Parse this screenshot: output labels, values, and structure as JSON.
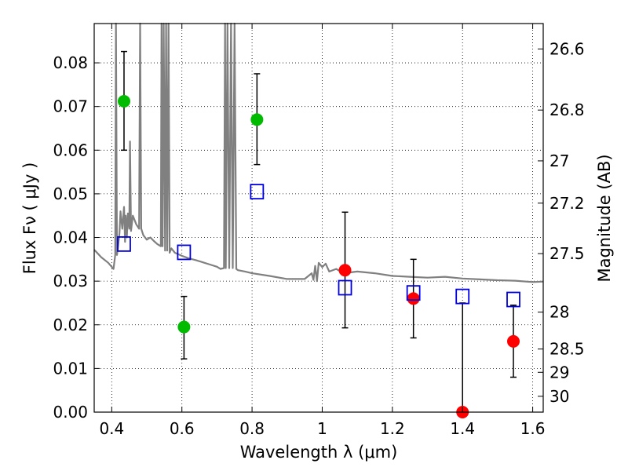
{
  "chart_data": {
    "type": "scatter",
    "xlabel": "Wavelength  λ (μm)",
    "ylabel": "Flux  Fν  ( μJy )",
    "y2label": "Magnitude (AB)",
    "xlim": [
      0.35,
      1.63
    ],
    "ylim": [
      0,
      0.089
    ],
    "grid": true,
    "x_ticks": [
      {
        "value": 0.4,
        "label": "0.4"
      },
      {
        "value": 0.6,
        "label": "0.6"
      },
      {
        "value": 0.8,
        "label": "0.8"
      },
      {
        "value": 1.0,
        "label": "1"
      },
      {
        "value": 1.2,
        "label": "1.2"
      },
      {
        "value": 1.4,
        "label": "1.4"
      },
      {
        "value": 1.6,
        "label": "1.6"
      }
    ],
    "y_ticks": [
      {
        "value": 0.0,
        "label": "0.00"
      },
      {
        "value": 0.01,
        "label": "0.01"
      },
      {
        "value": 0.02,
        "label": "0.02"
      },
      {
        "value": 0.03,
        "label": "0.03"
      },
      {
        "value": 0.04,
        "label": "0.04"
      },
      {
        "value": 0.05,
        "label": "0.05"
      },
      {
        "value": 0.06,
        "label": "0.06"
      },
      {
        "value": 0.07,
        "label": "0.07"
      },
      {
        "value": 0.08,
        "label": "0.08"
      }
    ],
    "y2_ticks": [
      {
        "value": 26.6,
        "label": "26.6"
      },
      {
        "value": 26.8,
        "label": "26.8"
      },
      {
        "value": 27.0,
        "label": "27"
      },
      {
        "value": 27.2,
        "label": "27.2"
      },
      {
        "value": 27.5,
        "label": "27.5"
      },
      {
        "value": 28.0,
        "label": "28"
      },
      {
        "value": 28.5,
        "label": "28.5"
      },
      {
        "value": 29.0,
        "label": "29"
      },
      {
        "value": 30.0,
        "label": "30"
      }
    ],
    "series": [
      {
        "kind": "points",
        "marker": "circle",
        "color": "#00bb00",
        "points": [
          {
            "x": 0.435,
            "y": 0.0712,
            "ylo": 0.06,
            "yhi": 0.0826
          },
          {
            "x": 0.606,
            "y": 0.0195,
            "ylo": 0.0122,
            "yhi": 0.0265
          },
          {
            "x": 0.814,
            "y": 0.067,
            "ylo": 0.0567,
            "yhi": 0.0775
          }
        ]
      },
      {
        "kind": "points",
        "marker": "circle",
        "color": "#ff0000",
        "points": [
          {
            "x": 1.065,
            "y": 0.0325,
            "ylo": 0.0193,
            "yhi": 0.0458
          },
          {
            "x": 1.26,
            "y": 0.026,
            "ylo": 0.017,
            "yhi": 0.035
          },
          {
            "x": 1.4,
            "y": 0.0,
            "ylo": 0.0,
            "yhi": 0.025
          },
          {
            "x": 1.545,
            "y": 0.0162,
            "ylo": 0.008,
            "yhi": 0.0245
          }
        ]
      },
      {
        "kind": "points",
        "marker": "open-square",
        "color": "#0000dd",
        "points": [
          {
            "x": 0.435,
            "y": 0.0385
          },
          {
            "x": 0.606,
            "y": 0.0366
          },
          {
            "x": 0.814,
            "y": 0.0505
          },
          {
            "x": 1.065,
            "y": 0.0285
          },
          {
            "x": 1.26,
            "y": 0.0273
          },
          {
            "x": 1.4,
            "y": 0.0265
          },
          {
            "x": 1.545,
            "y": 0.0258
          }
        ]
      },
      {
        "kind": "line",
        "color": "#808080",
        "x": [
          0.35,
          0.37,
          0.39,
          0.405,
          0.41,
          0.412,
          0.415,
          0.418,
          0.422,
          0.425,
          0.43,
          0.435,
          0.438,
          0.44,
          0.443,
          0.446,
          0.45,
          0.452,
          0.455,
          0.46,
          0.47,
          0.478,
          0.481,
          0.484,
          0.49,
          0.5,
          0.51,
          0.52,
          0.53,
          0.54,
          0.542,
          0.545,
          0.548,
          0.552,
          0.555,
          0.558,
          0.562,
          0.565,
          0.57,
          0.58,
          0.6,
          0.62,
          0.64,
          0.66,
          0.68,
          0.7,
          0.71,
          0.72,
          0.723,
          0.725,
          0.73,
          0.735,
          0.74,
          0.745,
          0.75,
          0.755,
          0.76,
          0.78,
          0.8,
          0.85,
          0.9,
          0.95,
          0.97,
          0.975,
          0.98,
          0.985,
          0.99,
          1.0,
          1.01,
          1.02,
          1.04,
          1.06,
          1.08,
          1.1,
          1.15,
          1.2,
          1.25,
          1.3,
          1.35,
          1.4,
          1.45,
          1.5,
          1.55,
          1.6,
          1.63
        ],
        "y": [
          0.0372,
          0.0355,
          0.0342,
          0.0328,
          0.036,
          0.09,
          0.036,
          0.038,
          0.041,
          0.046,
          0.042,
          0.047,
          0.039,
          0.045,
          0.04,
          0.0455,
          0.042,
          0.062,
          0.0415,
          0.045,
          0.043,
          0.042,
          0.09,
          0.042,
          0.0405,
          0.0395,
          0.04,
          0.0392,
          0.0385,
          0.038,
          0.09,
          0.038,
          0.09,
          0.037,
          0.09,
          0.037,
          0.09,
          0.0365,
          0.0375,
          0.0365,
          0.0358,
          0.0352,
          0.0348,
          0.0343,
          0.0338,
          0.0333,
          0.0328,
          0.033,
          0.09,
          0.033,
          0.09,
          0.033,
          0.09,
          0.033,
          0.09,
          0.0328,
          0.0325,
          0.0322,
          0.0318,
          0.0312,
          0.0305,
          0.0305,
          0.0318,
          0.0303,
          0.0335,
          0.03,
          0.0342,
          0.0332,
          0.034,
          0.0322,
          0.0328,
          0.0318,
          0.032,
          0.0322,
          0.0318,
          0.0312,
          0.031,
          0.0308,
          0.031,
          0.0306,
          0.0304,
          0.0302,
          0.0301,
          0.0298,
          0.0299
        ]
      }
    ]
  }
}
